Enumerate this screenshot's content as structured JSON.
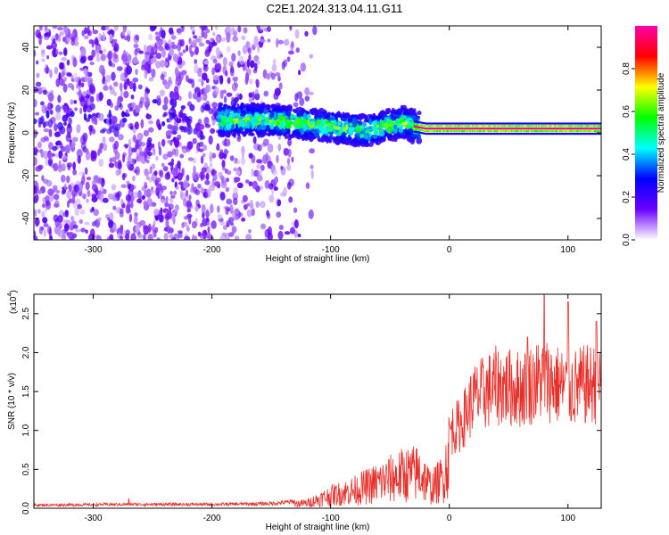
{
  "title": "C2E1.2024.313.04.11.G11",
  "chart_data": [
    {
      "type": "heatmap",
      "xlabel": "Height of straight line (km)",
      "ylabel": "Frequency (Hz)",
      "xlim": [
        -350,
        128
      ],
      "ylim": [
        -50,
        50
      ],
      "xticks": [
        -300,
        -200,
        -100,
        0,
        100
      ],
      "yticks": [
        -40,
        -20,
        0,
        20,
        40
      ],
      "colorbar": {
        "label": "Normalized spectral amplitude",
        "range": [
          0.0,
          1.0
        ],
        "ticks": [
          "0.0",
          "0.2",
          "0.4",
          "0.6",
          "0.8"
        ],
        "colors": [
          "#ffffff",
          "#6a00ff",
          "#0000ff",
          "#00ffff",
          "#00ff00",
          "#ffff00",
          "#ff0000",
          "#ff00aa"
        ]
      },
      "features": {
        "diffuse_region": {
          "x_range": [
            -350,
            -150
          ],
          "freq_range": [
            -50,
            50
          ],
          "amplitude": 0.1
        },
        "band_center_freq_hz": [
          {
            "x": -190,
            "freq": 6
          },
          {
            "x": -150,
            "freq": 6
          },
          {
            "x": -100,
            "freq": 3
          },
          {
            "x": -70,
            "freq": 1
          },
          {
            "x": -40,
            "freq": 5
          },
          {
            "x": -30,
            "freq": 3
          },
          {
            "x": -20,
            "freq": 2
          },
          {
            "x": 128,
            "freq": 2
          }
        ],
        "strong_band_start_km": -30,
        "strong_band_amplitude": 0.95
      }
    },
    {
      "type": "line",
      "xlabel": "Height of straight line (km)",
      "ylabel": "SNR (10 * v/v)",
      "y_exponent_label": "(x10",
      "y_exponent": "4",
      "y_exponent_close": ")",
      "xlim": [
        -350,
        128
      ],
      "ylim": [
        0,
        2.75
      ],
      "xticks": [
        -300,
        -200,
        -100,
        0,
        100
      ],
      "yticks": [
        "0.0",
        "0.5",
        "1.0",
        "1.5",
        "2.0",
        "2.5"
      ],
      "color": "#e8302a",
      "series": [
        {
          "values_envelope": [
            {
              "x": -350,
              "y": 0.04
            },
            {
              "x": -270,
              "y": 0.05
            },
            {
              "x": -200,
              "y": 0.05
            },
            {
              "x": -150,
              "y": 0.06
            },
            {
              "x": -120,
              "y": 0.1
            },
            {
              "x": -100,
              "y": 0.25
            },
            {
              "x": -80,
              "y": 0.35
            },
            {
              "x": -60,
              "y": 0.5
            },
            {
              "x": -40,
              "y": 0.65
            },
            {
              "x": -25,
              "y": 0.7
            },
            {
              "x": -15,
              "y": 0.4
            },
            {
              "x": -5,
              "y": 0.6
            },
            {
              "x": 0,
              "y": 1.1
            },
            {
              "x": 10,
              "y": 1.2
            },
            {
              "x": 20,
              "y": 1.55
            },
            {
              "x": 40,
              "y": 1.75
            },
            {
              "x": 60,
              "y": 1.7
            },
            {
              "x": 80,
              "y": 1.85
            },
            {
              "x": 100,
              "y": 1.7
            },
            {
              "x": 128,
              "y": 1.8
            }
          ],
          "peaks": [
            {
              "x": -270,
              "y": 0.12
            },
            {
              "x": 66,
              "y": 2.2
            },
            {
              "x": 80,
              "y": 2.75
            },
            {
              "x": 100,
              "y": 2.65
            },
            {
              "x": 124,
              "y": 2.4
            }
          ]
        }
      ]
    }
  ]
}
